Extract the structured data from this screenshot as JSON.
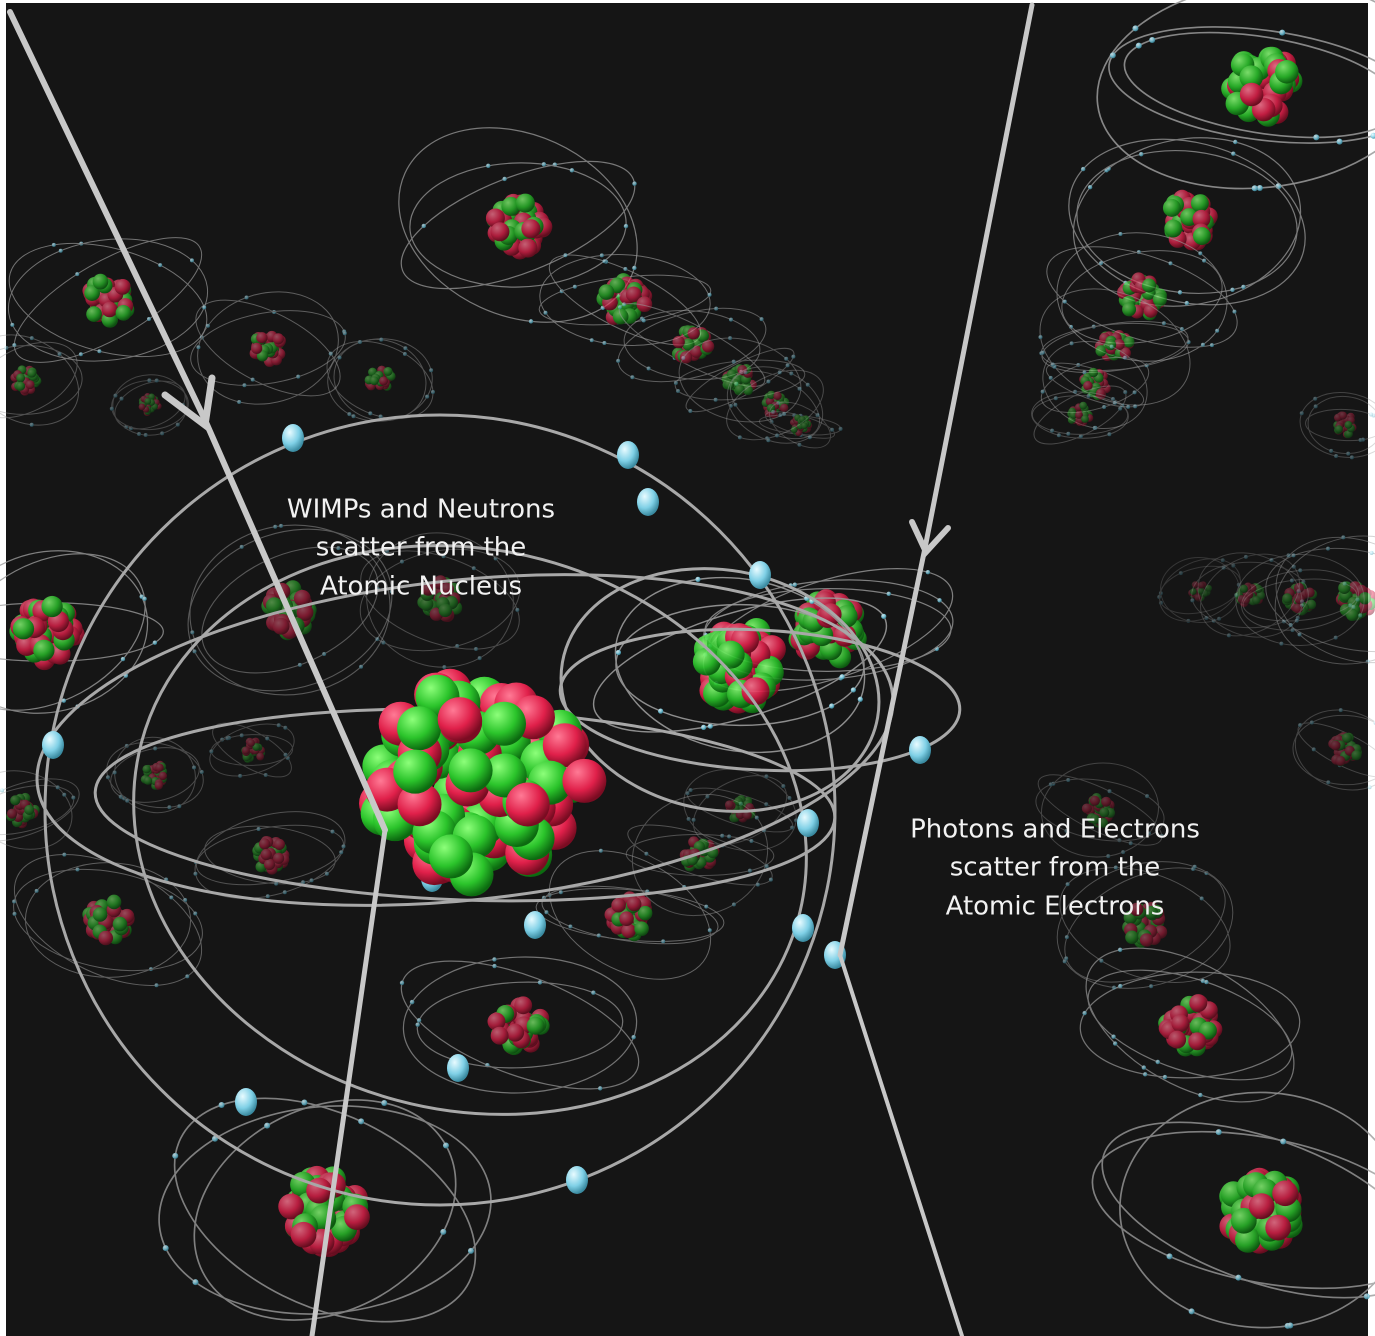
{
  "labels": [
    {
      "lines": [
        "WIMPs and Neutrons",
        "scatter from the",
        "Atomic Nucleus"
      ]
    },
    {
      "lines": [
        "Photons and Electrons",
        "scatter from the",
        "Atomic Electrons"
      ]
    }
  ]
}
